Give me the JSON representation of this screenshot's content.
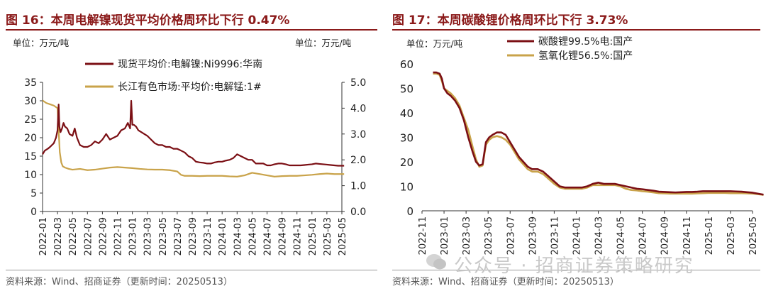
{
  "left": {
    "title": "图 16：本周电解镍现货平均价格周环比下行 0.47%",
    "unit_left": "单位：万元/吨",
    "unit_right": "单位：万元/吨",
    "source": "资料来源：Wind、招商证券（更新时间：20250513）",
    "colors": {
      "nickel": "#7b0f14",
      "manganese": "#c9a34a",
      "axis": "#333333"
    }
  },
  "right": {
    "title": "图 17：本周碳酸锂价格周环比下行 3.73%",
    "unit": "单位：万元/吨",
    "source": "资料来源：Wind、招商证券（更新时间：20250513）",
    "colors": {
      "carbonate": "#7b0f14",
      "hydroxide": "#c9a34a",
      "axis": "#333333"
    }
  },
  "watermark": {
    "text": "公众号 · 招商证券策略研究"
  },
  "chart_data": [
    {
      "type": "line",
      "x_ticks": [
        "2022-01",
        "2022-03",
        "2022-05",
        "2022-07",
        "2022-09",
        "2022-11",
        "2023-01",
        "2023-03",
        "2023-05",
        "2023-07",
        "2023-09",
        "2023-11",
        "2024-01",
        "2024-03",
        "2024-05",
        "2024-07",
        "2024-09",
        "2024-11",
        "2025-01",
        "2025-03",
        "2025-05"
      ],
      "y_left": {
        "ticks": [
          "0",
          "5",
          "10",
          "15",
          "20",
          "25",
          "30",
          "35"
        ],
        "lim": [
          0,
          35
        ]
      },
      "y_right": {
        "ticks": [
          "0.0",
          "1.0",
          "2.0",
          "3.0",
          "4.0",
          "5.0"
        ],
        "lim": [
          0,
          5
        ]
      },
      "series": [
        {
          "name": "现货平均价:电解镍:Ni9996:华南",
          "axis": "left",
          "x": [
            0,
            0.3,
            0.7,
            1.0,
            1.5,
            1.8,
            2.0,
            2.15,
            2.25,
            2.4,
            2.6,
            2.8,
            3.0,
            3.3,
            3.6,
            4.0,
            4.3,
            4.6,
            5.0,
            5.5,
            6.0,
            6.5,
            7.0,
            7.5,
            8.0,
            8.5,
            9.0,
            9.5,
            10.0,
            10.5,
            11.0,
            11.4,
            11.7,
            11.85,
            12.0,
            12.2,
            12.5,
            12.8,
            13.2,
            13.6,
            14.0,
            14.5,
            15.0,
            15.5,
            16.0,
            16.5,
            17.0,
            17.5,
            18.0,
            18.5,
            19.0,
            19.5,
            20.0,
            20.5,
            21.0,
            21.5,
            22.0,
            22.5,
            23.0,
            23.5,
            24.0,
            24.5,
            25.0,
            25.5,
            26.0,
            26.5,
            27.0,
            27.5,
            28.0,
            28.5,
            29.0,
            29.5,
            30.0,
            30.5,
            31.0,
            31.5,
            32.0,
            32.5,
            33.0,
            33.5,
            34.0,
            34.5,
            35.0,
            35.5,
            36.0,
            36.5,
            37.0,
            37.5,
            38.0,
            38.5,
            39.0,
            39.5,
            40.0,
            40.3
          ],
          "y": [
            15.5,
            16.5,
            17.0,
            17.5,
            18.5,
            20.0,
            22.0,
            29.0,
            23.0,
            21.5,
            22.5,
            24.0,
            23.0,
            22.5,
            21.0,
            20.5,
            22.5,
            20.0,
            18.0,
            17.5,
            17.5,
            18.0,
            19.0,
            18.5,
            19.5,
            21.0,
            19.5,
            20.0,
            20.5,
            22.0,
            22.5,
            24.0,
            22.5,
            30.0,
            23.5,
            23.5,
            23.0,
            22.0,
            21.5,
            21.0,
            20.5,
            19.5,
            18.5,
            18.0,
            18.0,
            17.5,
            17.5,
            17.0,
            17.0,
            16.5,
            16.0,
            15.0,
            14.5,
            13.5,
            13.3,
            13.2,
            13.0,
            13.0,
            13.3,
            13.5,
            13.5,
            13.8,
            14.0,
            14.5,
            15.5,
            15.0,
            14.5,
            14.0,
            14.0,
            13.0,
            13.0,
            13.0,
            12.5,
            12.5,
            12.8,
            13.0,
            13.0,
            12.8,
            12.5,
            12.5,
            12.5,
            12.5,
            12.6,
            12.7,
            12.8,
            13.0,
            12.9,
            12.8,
            12.7,
            12.6,
            12.5,
            12.4,
            12.4,
            12.4
          ]
        },
        {
          "name": "长江有色市场:平均价:电解锰:1#",
          "axis": "right",
          "x": [
            0,
            0.5,
            1.0,
            1.5,
            2.0,
            2.3,
            2.5,
            2.7,
            3.0,
            3.5,
            4.0,
            5.0,
            6.0,
            7.0,
            8.0,
            9.0,
            10.0,
            11.0,
            11.5,
            12.0,
            13.0,
            14.0,
            15.0,
            16.0,
            17.0,
            18.0,
            18.5,
            19.0,
            20.0,
            21.0,
            22.0,
            23.0,
            24.0,
            25.0,
            26.0,
            27.0,
            28.0,
            29.0,
            30.0,
            31.0,
            32.0,
            33.0,
            34.0,
            35.0,
            36.0,
            37.0,
            38.0,
            39.0,
            40.3
          ],
          "y": [
            4.3,
            4.2,
            4.15,
            4.1,
            4.0,
            2.3,
            1.9,
            1.75,
            1.7,
            1.65,
            1.62,
            1.65,
            1.6,
            1.62,
            1.66,
            1.7,
            1.72,
            1.7,
            1.69,
            1.68,
            1.65,
            1.63,
            1.62,
            1.62,
            1.6,
            1.55,
            1.42,
            1.38,
            1.38,
            1.37,
            1.38,
            1.38,
            1.38,
            1.36,
            1.35,
            1.4,
            1.5,
            1.45,
            1.4,
            1.35,
            1.37,
            1.38,
            1.38,
            1.4,
            1.42,
            1.45,
            1.47,
            1.45,
            1.45
          ]
        }
      ]
    },
    {
      "type": "line",
      "x_ticks": [
        "2022-11",
        "2023-01",
        "2023-03",
        "2023-05",
        "2023-07",
        "2023-09",
        "2023-11",
        "2024-01",
        "2024-03",
        "2024-05",
        "2024-07",
        "2024-09",
        "2024-11",
        "2025-01",
        "2025-03",
        "2025-05"
      ],
      "y": {
        "ticks": [
          "0",
          "10",
          "20",
          "30",
          "40",
          "50",
          "60"
        ],
        "lim": [
          0,
          60
        ]
      },
      "series": [
        {
          "name": "碳酸锂99.5%电:国产",
          "x": [
            1.0,
            1.3,
            1.6,
            1.8,
            2.0,
            2.3,
            2.6,
            3.0,
            3.4,
            3.8,
            4.2,
            4.6,
            4.9,
            5.2,
            5.5,
            5.8,
            6.1,
            6.4,
            6.8,
            7.2,
            7.6,
            8.0,
            8.4,
            8.8,
            9.2,
            9.6,
            10.0,
            10.5,
            11.0,
            11.5,
            12.0,
            12.5,
            13.0,
            13.5,
            14.0,
            14.5,
            15.0,
            15.5,
            16.0,
            16.5,
            17.0,
            17.5,
            18.0,
            18.5,
            19.0,
            19.5,
            20.0,
            20.5,
            21.0,
            21.5,
            22.0,
            22.5,
            23.0,
            23.5,
            24.0,
            24.5,
            25.0,
            25.5,
            26.0,
            26.5,
            27.0,
            27.5,
            28.0,
            28.5,
            29.0,
            29.5,
            30.0,
            30.5,
            31.0
          ],
          "y": [
            56.5,
            56.5,
            56,
            54,
            50,
            48,
            47,
            45,
            42,
            37,
            30,
            24,
            20,
            18.5,
            19,
            28,
            30,
            31,
            32,
            32,
            31,
            28,
            25,
            22,
            20,
            18,
            17,
            17,
            16,
            14,
            12,
            10,
            9.5,
            9.5,
            9.5,
            9.5,
            10,
            11,
            11.5,
            11,
            11,
            11,
            10.5,
            10,
            9.5,
            9,
            8.8,
            8.5,
            8.2,
            7.8,
            7.7,
            7.6,
            7.5,
            7.6,
            7.7,
            7.7,
            7.8,
            8,
            8,
            8,
            8,
            8,
            8,
            7.9,
            7.8,
            7.6,
            7.4,
            7.0,
            6.6
          ]
        },
        {
          "name": "氢氧化锂56.5%:国产",
          "x": [
            1.0,
            1.3,
            1.6,
            1.8,
            2.0,
            2.3,
            2.6,
            3.0,
            3.4,
            3.8,
            4.2,
            4.6,
            4.9,
            5.2,
            5.5,
            5.8,
            6.1,
            6.4,
            6.8,
            7.2,
            7.6,
            8.0,
            8.4,
            8.8,
            9.2,
            9.6,
            10.0,
            10.5,
            11.0,
            11.5,
            12.0,
            12.5,
            13.0,
            13.5,
            14.0,
            14.5,
            15.0,
            15.5,
            16.0,
            16.5,
            17.0,
            17.5,
            18.0,
            18.5,
            19.0,
            19.5,
            20.0,
            20.5,
            21.0,
            21.5,
            22.0,
            22.5,
            23.0,
            23.5,
            24.0,
            24.5,
            25.0,
            25.5,
            26.0,
            26.5,
            27.0,
            27.5,
            28.0,
            28.5,
            29.0,
            29.5,
            30.0,
            30.5,
            31.0
          ],
          "y": [
            56,
            56,
            55.5,
            53,
            50,
            49,
            48,
            46,
            43,
            38,
            33,
            26,
            21,
            18,
            18.5,
            27,
            29,
            30,
            30.5,
            30,
            29,
            27,
            24,
            21,
            19,
            17,
            16,
            16,
            15,
            13,
            11,
            9.5,
            9,
            9,
            9,
            9,
            9.5,
            10.5,
            10.5,
            10.5,
            10.5,
            10.5,
            10,
            9,
            8.5,
            8.3,
            8,
            7.8,
            7.5,
            7.2,
            7.1,
            7,
            7,
            7,
            7,
            7,
            7.1,
            7.2,
            7.3,
            7.3,
            7.3,
            7.3,
            7.2,
            7.2,
            7.2,
            7.1,
            7.0,
            6.8,
            6.5
          ]
        }
      ]
    }
  ]
}
